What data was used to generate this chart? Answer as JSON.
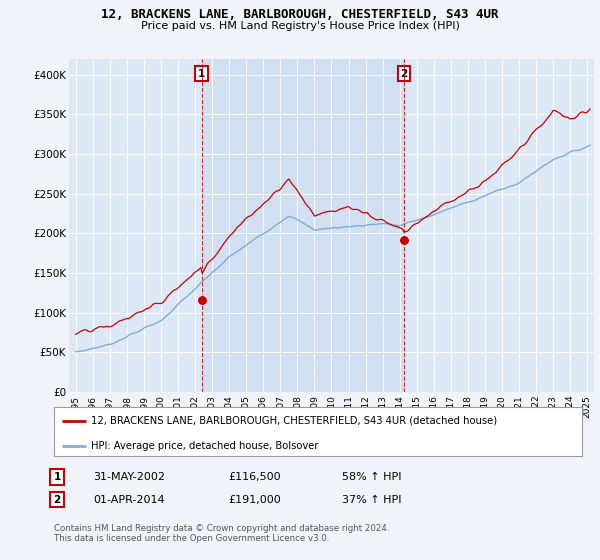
{
  "title1": "12, BRACKENS LANE, BARLBOROUGH, CHESTERFIELD, S43 4UR",
  "title2": "Price paid vs. HM Land Registry's House Price Index (HPI)",
  "ylim": [
    0,
    420000
  ],
  "yticks": [
    0,
    50000,
    100000,
    150000,
    200000,
    250000,
    300000,
    350000,
    400000
  ],
  "ytick_labels": [
    "£0",
    "£50K",
    "£100K",
    "£150K",
    "£200K",
    "£250K",
    "£300K",
    "£350K",
    "£400K"
  ],
  "legend_line1": "12, BRACKENS LANE, BARLBOROUGH, CHESTERFIELD, S43 4UR (detached house)",
  "legend_line2": "HPI: Average price, detached house, Bolsover",
  "line1_color": "#cc0000",
  "line2_color": "#7eadd4",
  "annotation1_label": "1",
  "annotation1_date": "31-MAY-2002",
  "annotation1_price": "£116,500",
  "annotation1_hpi": "58% ↑ HPI",
  "annotation2_label": "2",
  "annotation2_date": "01-APR-2014",
  "annotation2_price": "£191,000",
  "annotation2_hpi": "37% ↑ HPI",
  "footer": "Contains HM Land Registry data © Crown copyright and database right 2024.\nThis data is licensed under the Open Government Licence v3.0.",
  "bg_color": "#f0f4fa",
  "plot_bg_color": "#dce8f5",
  "shade_color": "#c8dcf0",
  "sale1_t": 2002.375,
  "sale2_t": 2014.25,
  "sale1_price": 116500,
  "sale2_price": 191000
}
